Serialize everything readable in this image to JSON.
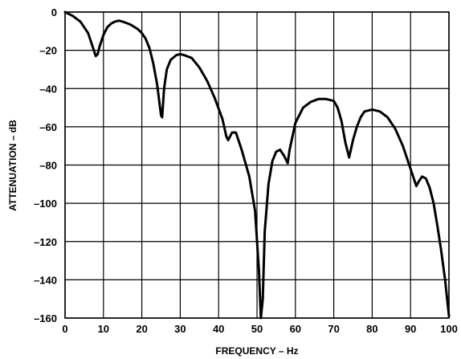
{
  "chart_data": {
    "type": "line",
    "title": "",
    "xlabel": "FREQUENCY – Hz",
    "ylabel": "ATTENUATION – dB",
    "xlim": [
      0,
      100
    ],
    "ylim": [
      -160,
      0
    ],
    "grid": true,
    "x_ticks": [
      0,
      10,
      20,
      30,
      40,
      50,
      60,
      70,
      80,
      90,
      100
    ],
    "y_ticks": [
      0,
      -20,
      -40,
      -60,
      -80,
      -100,
      -120,
      -140,
      -160
    ],
    "x_tick_labels": [
      "0",
      "10",
      "20",
      "30",
      "40",
      "50",
      "60",
      "70",
      "80",
      "90",
      "100"
    ],
    "y_tick_labels": [
      "0",
      "–20",
      "–40",
      "–60",
      "–80",
      "–100",
      "–120",
      "–140",
      "–160"
    ],
    "series": [
      {
        "color": "#000000",
        "points": [
          [
            0,
            0
          ],
          [
            2,
            -2
          ],
          [
            4,
            -5
          ],
          [
            6,
            -11
          ],
          [
            7,
            -17
          ],
          [
            8,
            -23
          ],
          [
            8.5,
            -22
          ],
          [
            9,
            -18
          ],
          [
            10,
            -12
          ],
          [
            11,
            -8
          ],
          [
            12,
            -6
          ],
          [
            13,
            -5
          ],
          [
            14,
            -4.5
          ],
          [
            15,
            -5
          ],
          [
            17,
            -6.5
          ],
          [
            19,
            -9
          ],
          [
            20,
            -11
          ],
          [
            21,
            -14
          ],
          [
            22,
            -19
          ],
          [
            23,
            -27
          ],
          [
            24,
            -38
          ],
          [
            25,
            -54
          ],
          [
            25.3,
            -55
          ],
          [
            25.8,
            -40
          ],
          [
            26.5,
            -30
          ],
          [
            27.5,
            -25
          ],
          [
            29,
            -22.5
          ],
          [
            30,
            -22
          ],
          [
            31,
            -22.5
          ],
          [
            33,
            -24
          ],
          [
            35,
            -29
          ],
          [
            37,
            -36
          ],
          [
            39,
            -45
          ],
          [
            41,
            -56
          ],
          [
            42,
            -65
          ],
          [
            42.5,
            -67
          ],
          [
            43.5,
            -63
          ],
          [
            44.5,
            -63
          ],
          [
            46,
            -72
          ],
          [
            48,
            -86
          ],
          [
            49.5,
            -104
          ],
          [
            50.5,
            -135
          ],
          [
            51,
            -160
          ],
          [
            51.5,
            -150
          ],
          [
            52,
            -115
          ],
          [
            53,
            -90
          ],
          [
            54,
            -78
          ],
          [
            55,
            -73
          ],
          [
            56,
            -72
          ],
          [
            57,
            -75
          ],
          [
            58,
            -79
          ],
          [
            58.5,
            -72
          ],
          [
            60,
            -58
          ],
          [
            62,
            -50
          ],
          [
            64,
            -47
          ],
          [
            66,
            -45.5
          ],
          [
            68,
            -45.5
          ],
          [
            70,
            -46.5
          ],
          [
            71,
            -50
          ],
          [
            72,
            -57
          ],
          [
            73,
            -68
          ],
          [
            74,
            -76
          ],
          [
            75,
            -67
          ],
          [
            76,
            -60
          ],
          [
            77,
            -55
          ],
          [
            78,
            -52
          ],
          [
            80,
            -51
          ],
          [
            82,
            -52
          ],
          [
            84,
            -55
          ],
          [
            86,
            -61
          ],
          [
            88,
            -70
          ],
          [
            90,
            -82
          ],
          [
            91,
            -88
          ],
          [
            91.5,
            -91
          ],
          [
            92,
            -89
          ],
          [
            93,
            -86
          ],
          [
            94,
            -87
          ],
          [
            95,
            -92
          ],
          [
            96,
            -100
          ],
          [
            97,
            -112
          ],
          [
            98,
            -125
          ],
          [
            99,
            -140
          ],
          [
            100,
            -159
          ]
        ]
      }
    ]
  }
}
